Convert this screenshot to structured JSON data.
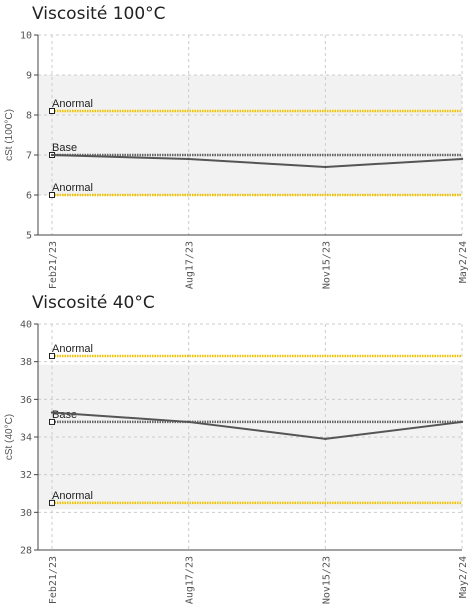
{
  "chart_data": [
    {
      "type": "line",
      "title": "Viscosité 100°C",
      "ylabel": "cSt (100°C)",
      "xlabel": "",
      "categories": [
        "Feb21/23",
        "Aug17/23",
        "Nov15/23",
        "May2/24"
      ],
      "ylim": [
        5,
        10
      ],
      "yticks": [
        5,
        6,
        7,
        8,
        9,
        10
      ],
      "grid": true,
      "series": [
        {
          "values": [
            7.0,
            6.9,
            6.7,
            6.9
          ],
          "color": "#555555"
        }
      ],
      "reference_lines": [
        {
          "label": "Anormal",
          "value": 8.1,
          "color": "#f2c200"
        },
        {
          "label": "Base",
          "value": 7.0,
          "color": "#666666"
        },
        {
          "label": "Anormal",
          "value": 6.0,
          "color": "#f2c200"
        }
      ]
    },
    {
      "type": "line",
      "title": "Viscosité 40°C",
      "ylabel": "cSt (40°C)",
      "xlabel": "",
      "categories": [
        "Feb21/23",
        "Aug17/23",
        "Nov15/23",
        "May2/24"
      ],
      "ylim": [
        28,
        40
      ],
      "yticks": [
        28,
        30,
        32,
        34,
        36,
        38,
        40
      ],
      "grid": true,
      "series": [
        {
          "values": [
            35.3,
            34.8,
            33.9,
            34.8
          ],
          "color": "#555555"
        }
      ],
      "reference_lines": [
        {
          "label": "Anormal",
          "value": 38.3,
          "color": "#f2c200"
        },
        {
          "label": "Base",
          "value": 34.8,
          "color": "#666666"
        },
        {
          "label": "Anormal",
          "value": 30.5,
          "color": "#f2c200"
        }
      ]
    }
  ]
}
